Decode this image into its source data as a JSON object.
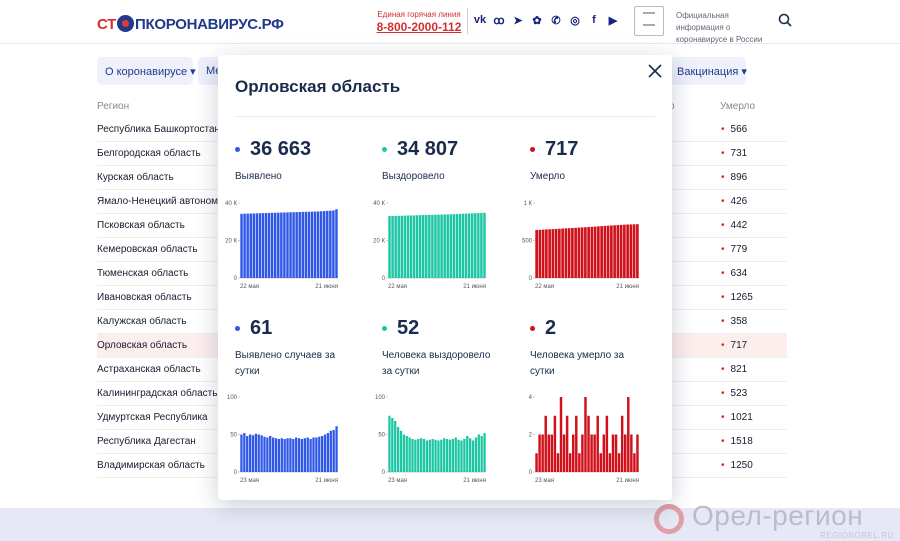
{
  "header": {
    "logo_part1": "СТ",
    "logo_part2": "ПКОРОНАВИРУС.РФ",
    "hotline_caption": "Единая горячая линия",
    "hotline_phone": "8-800-2000-112",
    "social_icons": [
      "vk-icon",
      "ok-icon",
      "telegram-icon",
      "vk-clips-icon",
      "viber-icon",
      "instagram-icon",
      "facebook-icon",
      "youtube-icon"
    ],
    "gov_text": "Официальная информация о коронавирусе в России"
  },
  "nav": {
    "items": [
      {
        "label": "О коронавирусе ▾"
      },
      {
        "label": "Ме"
      },
      {
        "label": "Вакцинация ▾"
      }
    ]
  },
  "table": {
    "col_region": "Регион",
    "col_recovered_tail": "о",
    "col_dead": "Умерло",
    "rows": [
      {
        "region": "Республика Башкортостан",
        "dead": "566"
      },
      {
        "region": "Белгородская область",
        "dead": "731"
      },
      {
        "region": "Курская область",
        "dead": "896"
      },
      {
        "region": "Ямало-Ненецкий автономн",
        "dead": "426"
      },
      {
        "region": "Псковская область",
        "dead": "442"
      },
      {
        "region": "Кемеровская область",
        "dead": "779"
      },
      {
        "region": "Тюменская область",
        "dead": "634"
      },
      {
        "region": "Ивановская область",
        "dead": "1265"
      },
      {
        "region": "Калужская область",
        "dead": "358"
      },
      {
        "region": "Орловская область",
        "dead": "717"
      },
      {
        "region": "Астраханская область",
        "dead": "821"
      },
      {
        "region": "Калининградская область",
        "dead": "523"
      },
      {
        "region": "Удмуртская Республика",
        "dead": "1021"
      },
      {
        "region": "Республика Дагестан",
        "dead": "1518"
      },
      {
        "region": "Владимирская область",
        "dead": "1250"
      }
    ]
  },
  "modal": {
    "title": "Орловская область",
    "stats": [
      {
        "value": "36 663",
        "label": "Выявлено",
        "color": "#2f57e8"
      },
      {
        "value": "34 807",
        "label": "Выздоровело",
        "color": "#1cc6a3"
      },
      {
        "value": "717",
        "label": "Умерло",
        "color": "#d0111b"
      },
      {
        "value": "61",
        "label": "Выявлено случаев за сутки",
        "color": "#2f57e8"
      },
      {
        "value": "52",
        "label": "Человека выздоровело за сутки",
        "color": "#1cc6a3"
      },
      {
        "value": "2",
        "label": "Человека умерло за сутки",
        "color": "#d0111b"
      }
    ]
  },
  "chart_data": [
    {
      "type": "bar",
      "color": "#2f57e8",
      "xlabels": [
        "22 мая",
        "21 июня"
      ],
      "ytick_labels": [
        "40 К",
        "20 К",
        "0"
      ],
      "ylim": [
        0,
        40000
      ],
      "values": [
        34200,
        34300,
        34350,
        34400,
        34450,
        34500,
        34550,
        34600,
        34650,
        34700,
        34750,
        34800,
        34850,
        34900,
        34950,
        35000,
        35050,
        35100,
        35150,
        35200,
        35250,
        35300,
        35350,
        35400,
        35450,
        35500,
        35600,
        35700,
        35800,
        35900,
        36000,
        36663
      ]
    },
    {
      "type": "bar",
      "color": "#1cc6a3",
      "xlabels": [
        "22 мая",
        "21 июня"
      ],
      "ytick_labels": [
        "40 К",
        "20 К",
        "0"
      ],
      "ylim": [
        0,
        40000
      ],
      "values": [
        33000,
        33050,
        33100,
        33150,
        33200,
        33250,
        33300,
        33350,
        33400,
        33450,
        33500,
        33550,
        33600,
        33650,
        33700,
        33750,
        33800,
        33850,
        33900,
        33950,
        34000,
        34050,
        34100,
        34200,
        34300,
        34350,
        34400,
        34500,
        34550,
        34600,
        34700,
        34807
      ]
    },
    {
      "type": "bar",
      "color": "#d0111b",
      "xlabels": [
        "22 мая",
        "21 июня"
      ],
      "ytick_labels": [
        "1 К",
        "500",
        "0"
      ],
      "ylim": [
        0,
        1000
      ],
      "values": [
        640,
        642,
        645,
        648,
        650,
        652,
        655,
        657,
        660,
        662,
        665,
        667,
        670,
        672,
        675,
        677,
        680,
        683,
        686,
        689,
        692,
        695,
        698,
        700,
        703,
        706,
        709,
        711,
        713,
        714,
        716,
        717
      ]
    },
    {
      "type": "bar",
      "color": "#2f57e8",
      "xlabels": [
        "23 мая",
        "21 июня"
      ],
      "ytick_labels": [
        "100",
        "50",
        "0"
      ],
      "ylim": [
        0,
        100
      ],
      "values": [
        50,
        52,
        48,
        50,
        49,
        51,
        50,
        49,
        47,
        46,
        48,
        46,
        45,
        44,
        45,
        44,
        45,
        45,
        44,
        46,
        45,
        44,
        45,
        46,
        44,
        46,
        46,
        47,
        48,
        50,
        52,
        55,
        56,
        61
      ]
    },
    {
      "type": "bar",
      "color": "#1cc6a3",
      "xlabels": [
        "23 мая",
        "21 июня"
      ],
      "ytick_labels": [
        "100",
        "50",
        "0"
      ],
      "ylim": [
        0,
        100
      ],
      "values": [
        75,
        72,
        68,
        60,
        55,
        50,
        48,
        46,
        44,
        43,
        44,
        45,
        44,
        42,
        43,
        44,
        43,
        42,
        43,
        45,
        44,
        43,
        44,
        46,
        43,
        42,
        44,
        48,
        45,
        42,
        46,
        50,
        48,
        52
      ]
    },
    {
      "type": "bar",
      "color": "#d0111b",
      "xlabels": [
        "23 мая",
        "21 июня"
      ],
      "ytick_labels": [
        "4",
        "2",
        "0"
      ],
      "ylim": [
        0,
        4
      ],
      "values": [
        1,
        2,
        2,
        3,
        2,
        2,
        3,
        1,
        4,
        2,
        3,
        1,
        2,
        3,
        1,
        2,
        4,
        3,
        2,
        2,
        3,
        1,
        2,
        3,
        1,
        2,
        2,
        1,
        3,
        2,
        4,
        2,
        1,
        2
      ]
    }
  ],
  "watermark": {
    "text": "Орел-регион",
    "sub": "REGIONOREL.RU"
  }
}
